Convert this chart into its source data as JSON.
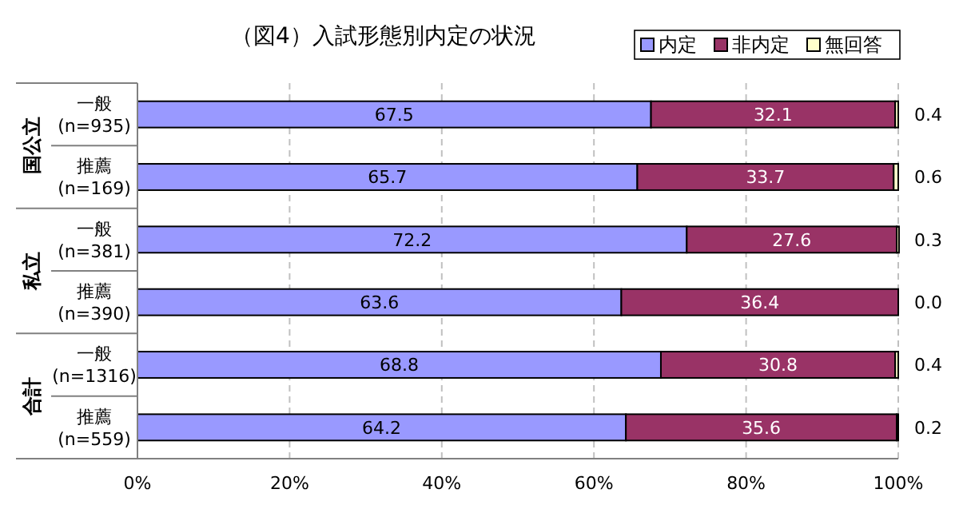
{
  "chart_data": {
    "type": "bar",
    "orientation": "horizontal",
    "stacked": true,
    "title": "（図4）入試形態別内定の状況",
    "categories": [
      "一般\n(n=935)",
      "推薦\n(n=169)",
      "一般\n(n=381)",
      "推薦\n(n=390)",
      "一般\n(n=1316)",
      "推薦\n(n=559)"
    ],
    "series": [
      {
        "name": "内定",
        "color": "#9999ff",
        "values": [
          67.5,
          65.7,
          72.2,
          63.6,
          68.8,
          64.2
        ]
      },
      {
        "name": "非内定",
        "color": "#993366",
        "values": [
          32.1,
          33.7,
          27.6,
          36.4,
          30.8,
          35.6
        ]
      },
      {
        "name": "無回答",
        "color": "#ffffcc",
        "values": [
          0.4,
          0.6,
          0.3,
          0.0,
          0.4,
          0.2
        ],
        "value_labels": [
          "0.4",
          "0.6",
          "0.3",
          "0.0",
          "0.4",
          "0.2"
        ]
      }
    ],
    "annotations": [
      "国公立",
      "私立",
      "合計"
    ],
    "xlim": [
      0,
      100
    ],
    "xticks": [
      {
        "value": 0,
        "label": "0%"
      },
      {
        "value": 20,
        "label": "20%"
      },
      {
        "value": 40,
        "label": "40%"
      },
      {
        "value": 60,
        "label": "60%"
      },
      {
        "value": 80,
        "label": "80%"
      },
      {
        "value": 100,
        "label": "100%"
      }
    ],
    "grid": "x",
    "legend": "top right",
    "data_labels": true
  }
}
